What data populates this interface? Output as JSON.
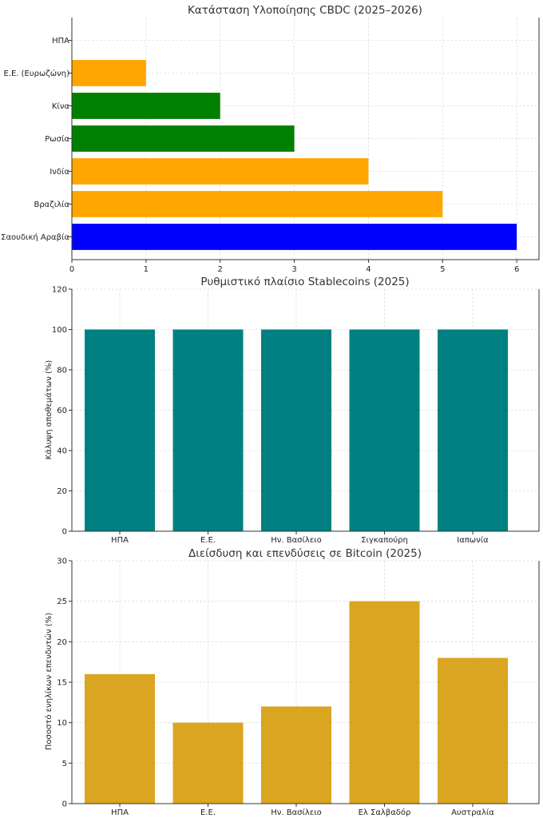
{
  "chart_data": [
    {
      "type": "bar",
      "orientation": "horizontal",
      "title": "Κατάσταση Υλοποίησης CBDC (2025–2026)",
      "xlabel": "",
      "ylabel": "",
      "categories": [
        "ΗΠΑ",
        "Ε.Ε. (Ευρωζώνη)",
        "Κίνα",
        "Ρωσία",
        "Ινδία",
        "Βραζιλία",
        "Σαουδική Αραβία"
      ],
      "values": [
        0,
        1,
        2,
        3,
        4,
        5,
        6
      ],
      "colors": [
        "#ff0000",
        "#ffa500",
        "#008000",
        "#008000",
        "#ffa500",
        "#ffa500",
        "#0000ff"
      ],
      "xlim": [
        0,
        6.3
      ],
      "xticks": [
        0,
        1,
        2,
        3,
        4,
        5,
        6
      ],
      "grid": true
    },
    {
      "type": "bar",
      "title": "Ρυθμιστικό πλαίσιο Stablecoins (2025)",
      "xlabel": "",
      "ylabel": "Κάλυψη αποθεμάτων (%)",
      "categories": [
        "ΗΠΑ",
        "Ε.Ε.",
        "Ην. Βασίλειο",
        "Σιγκαπούρη",
        "Ιαπωνία"
      ],
      "values": [
        100,
        100,
        100,
        100,
        100
      ],
      "color": "#008080",
      "ylim": [
        0,
        120
      ],
      "yticks": [
        0,
        20,
        40,
        60,
        80,
        100,
        120
      ],
      "grid": true
    },
    {
      "type": "bar",
      "title": "Διείσδυση και επενδύσεις σε Bitcoin (2025)",
      "xlabel": "",
      "ylabel": "Ποσοστό ενηλίκων επενδυτών (%)",
      "categories": [
        "ΗΠΑ",
        "Ε.Ε.",
        "Ην. Βασίλειο",
        "Ελ Σαλβαδόρ",
        "Αυστραλία"
      ],
      "values": [
        16,
        10,
        12,
        25,
        18
      ],
      "color": "#daa520",
      "ylim": [
        0,
        30
      ],
      "yticks": [
        0,
        5,
        10,
        15,
        20,
        25,
        30
      ],
      "grid": true
    }
  ]
}
